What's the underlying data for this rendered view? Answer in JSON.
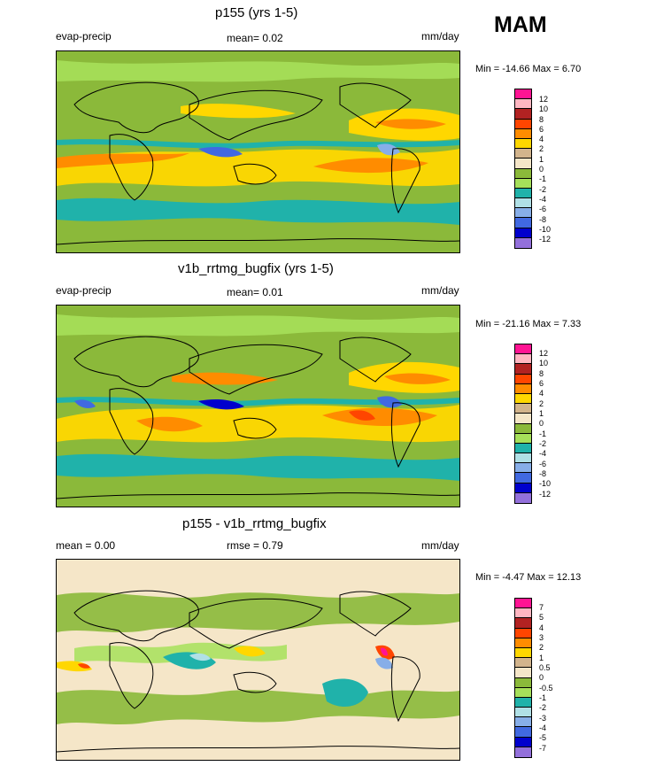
{
  "season": "MAM",
  "colors": {
    "ocean_base": "#8bb93a",
    "diff_base": "#f5e6c8",
    "coast": "#000000"
  },
  "panels": [
    {
      "title": "p155 (yrs 1-5)",
      "left_label": "evap-precip",
      "center_label": "mean=  0.02",
      "units": "mm/day",
      "minmax": "Min = -14.66 Max =   6.70",
      "colorbar": {
        "labels": [
          "12",
          "10",
          "8",
          "6",
          "4",
          "2",
          "1",
          "0",
          "-1",
          "-2",
          "-4",
          "-6",
          "-8",
          "-10",
          "-12"
        ],
        "colors": [
          "#ff1493",
          "#ffb6c1",
          "#b22222",
          "#ff4500",
          "#ff8c00",
          "#ffd700",
          "#d2b48c",
          "#f5e6c8",
          "#8bb93a",
          "#a6e05a",
          "#20b2aa",
          "#b0e0e6",
          "#87aee8",
          "#4169e1",
          "#0000cd",
          "#9370db"
        ]
      }
    },
    {
      "title": "v1b_rrtmg_bugfix (yrs 1-5)",
      "left_label": "evap-precip",
      "center_label": "mean=  0.01",
      "units": "mm/day",
      "minmax": "Min = -21.16 Max =   7.33",
      "colorbar": {
        "labels": [
          "12",
          "10",
          "8",
          "6",
          "4",
          "2",
          "1",
          "0",
          "-1",
          "-2",
          "-4",
          "-6",
          "-8",
          "-10",
          "-12"
        ],
        "colors": [
          "#ff1493",
          "#ffb6c1",
          "#b22222",
          "#ff4500",
          "#ff8c00",
          "#ffd700",
          "#d2b48c",
          "#f5e6c8",
          "#8bb93a",
          "#a6e05a",
          "#20b2aa",
          "#b0e0e6",
          "#87aee8",
          "#4169e1",
          "#0000cd",
          "#9370db"
        ]
      }
    },
    {
      "title": "p155 - v1b_rrtmg_bugfix",
      "left_label": "mean =   0.00",
      "center_label": "rmse =   0.79",
      "units": "mm/day",
      "minmax": "Min =  -4.47 Max =  12.13",
      "colorbar": {
        "labels": [
          "7",
          "5",
          "4",
          "3",
          "2",
          "1",
          "0.5",
          "0",
          "-0.5",
          "-1",
          "-2",
          "-3",
          "-4",
          "-5",
          "-7"
        ],
        "colors": [
          "#ff1493",
          "#ffb6c1",
          "#b22222",
          "#ff4500",
          "#ff8c00",
          "#ffd700",
          "#d2b48c",
          "#f5e6c8",
          "#8bb93a",
          "#a6e05a",
          "#20b2aa",
          "#b0e0e6",
          "#87aee8",
          "#4169e1",
          "#0000cd",
          "#9370db"
        ]
      }
    }
  ]
}
